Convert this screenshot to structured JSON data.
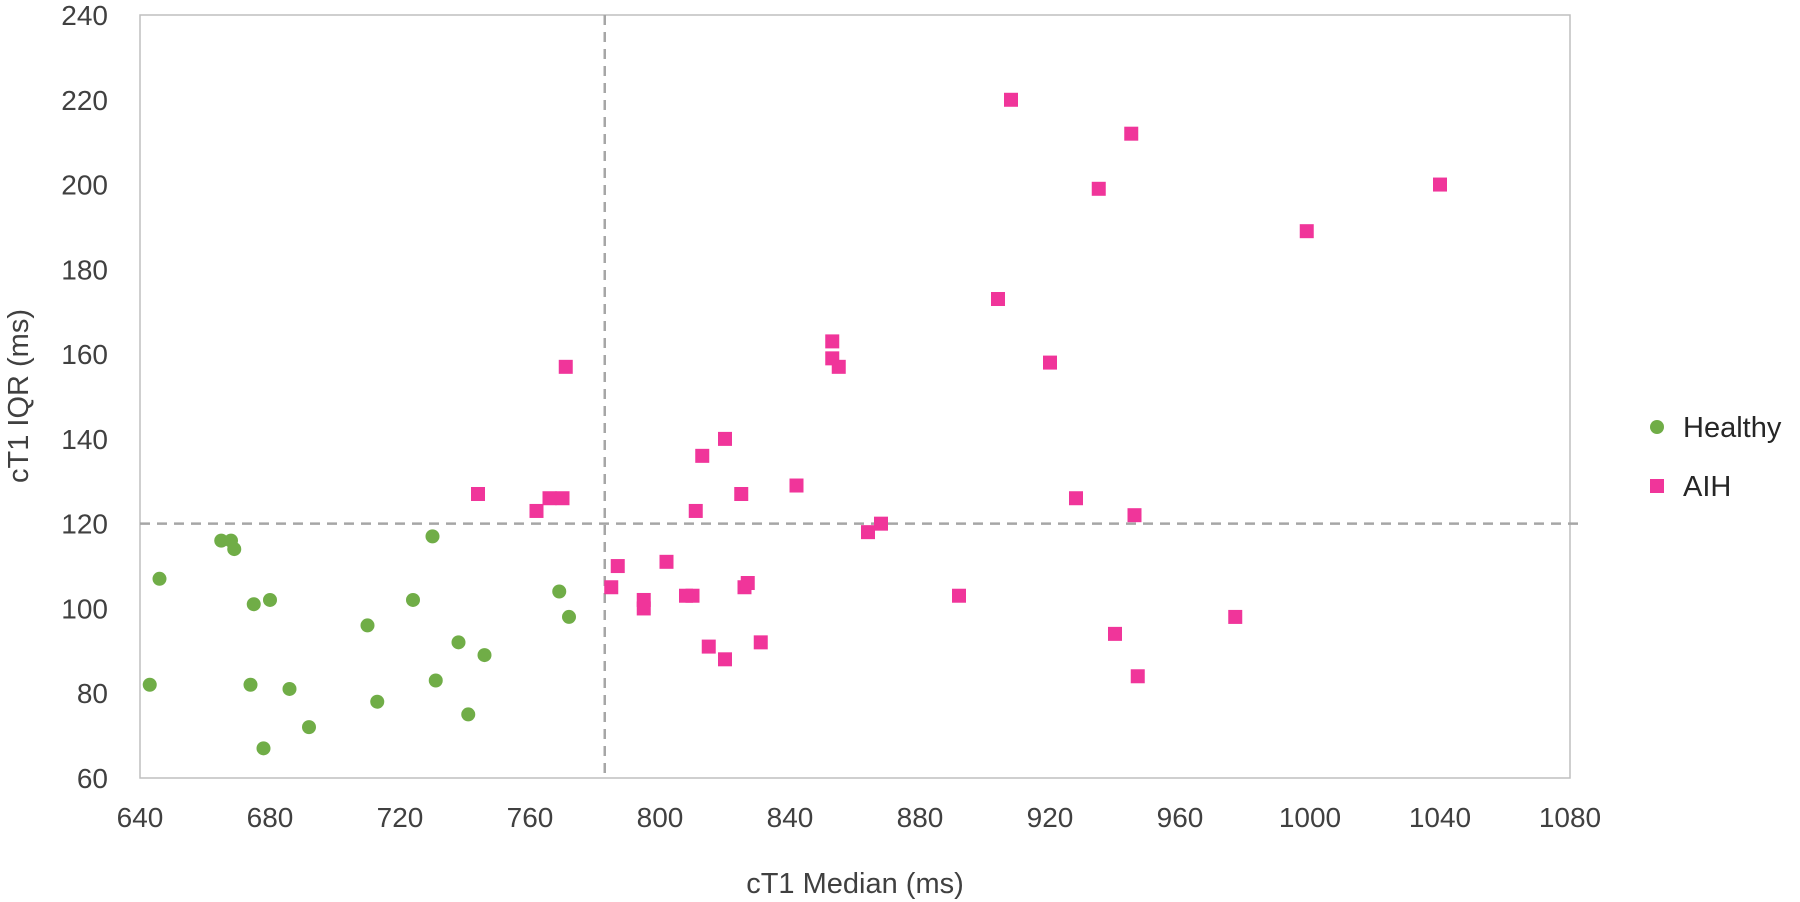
{
  "chart_data": {
    "type": "scatter",
    "title": "",
    "xlabel": "cT1 Median (ms)",
    "ylabel": "cT1 IQR (ms)",
    "xlim": [
      640,
      1080
    ],
    "ylim": [
      60,
      240
    ],
    "xticks": [
      640,
      680,
      720,
      760,
      800,
      840,
      880,
      920,
      960,
      1000,
      1040,
      1080
    ],
    "yticks": [
      60,
      80,
      100,
      120,
      140,
      160,
      180,
      200,
      220,
      240
    ],
    "grid": false,
    "legend_position": "right",
    "reference_lines": {
      "x": 783,
      "y": 120
    },
    "colors": {
      "healthy": "#70ad47",
      "aih": "#f0359a",
      "reference": "#a6a6a6",
      "frame": "#bfbfbf"
    },
    "series": [
      {
        "name": "Healthy",
        "marker": "circle",
        "points": [
          [
            643,
            82
          ],
          [
            646,
            107
          ],
          [
            665,
            116
          ],
          [
            668,
            116
          ],
          [
            669,
            114
          ],
          [
            675,
            101
          ],
          [
            674,
            82
          ],
          [
            678,
            67
          ],
          [
            680,
            102
          ],
          [
            686,
            81
          ],
          [
            692,
            72
          ],
          [
            710,
            96
          ],
          [
            713,
            78
          ],
          [
            724,
            102
          ],
          [
            730,
            117
          ],
          [
            731,
            83
          ],
          [
            738,
            92
          ],
          [
            741,
            75
          ],
          [
            746,
            89
          ],
          [
            769,
            104
          ],
          [
            772,
            98
          ]
        ]
      },
      {
        "name": "AIH",
        "marker": "square",
        "points": [
          [
            744,
            127
          ],
          [
            762,
            123
          ],
          [
            766,
            126
          ],
          [
            770,
            126
          ],
          [
            771,
            157
          ],
          [
            785,
            105
          ],
          [
            787,
            110
          ],
          [
            795,
            102
          ],
          [
            795,
            100
          ],
          [
            802,
            111
          ],
          [
            808,
            103
          ],
          [
            810,
            103
          ],
          [
            811,
            123
          ],
          [
            813,
            136
          ],
          [
            815,
            91
          ],
          [
            820,
            88
          ],
          [
            820,
            140
          ],
          [
            825,
            127
          ],
          [
            826,
            105
          ],
          [
            827,
            106
          ],
          [
            831,
            92
          ],
          [
            842,
            129
          ],
          [
            853,
            163
          ],
          [
            853,
            159
          ],
          [
            855,
            157
          ],
          [
            864,
            118
          ],
          [
            868,
            120
          ],
          [
            892,
            103
          ],
          [
            904,
            173
          ],
          [
            908,
            220
          ],
          [
            920,
            158
          ],
          [
            928,
            126
          ],
          [
            935,
            199
          ],
          [
            940,
            94
          ],
          [
            945,
            212
          ],
          [
            946,
            122
          ],
          [
            947,
            84
          ],
          [
            977,
            98
          ],
          [
            999,
            189
          ],
          [
            1040,
            200
          ]
        ]
      }
    ]
  }
}
